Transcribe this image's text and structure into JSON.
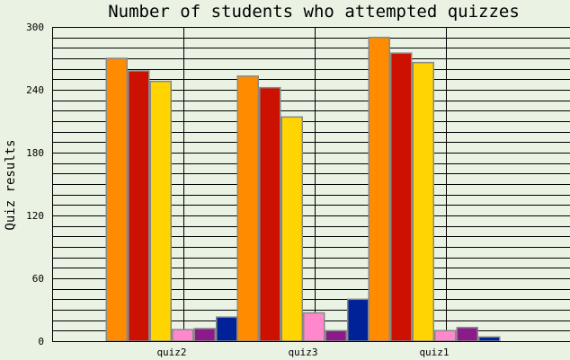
{
  "chart_data": {
    "type": "bar",
    "title": "Number of students who attempted quizzes",
    "xlabel": "",
    "ylabel": "Quiz results",
    "ylim": [
      0,
      300
    ],
    "yticks": [
      "0",
      "60",
      "120",
      "180",
      "240",
      "300"
    ],
    "grid": true,
    "categories": [
      "quiz2",
      "quiz3",
      "quiz1"
    ],
    "series": [
      {
        "color": "#ff8c00",
        "values": [
          270,
          253,
          290
        ]
      },
      {
        "color": "#cc1100",
        "values": [
          258,
          242,
          275
        ]
      },
      {
        "color": "#ffd400",
        "values": [
          248,
          214,
          266
        ]
      },
      {
        "color": "#ff88cc",
        "values": [
          11,
          27,
          10
        ]
      },
      {
        "color": "#8b1a8b",
        "values": [
          12,
          10,
          13
        ]
      },
      {
        "color": "#002299",
        "values": [
          23,
          40,
          4
        ]
      }
    ],
    "colors": {
      "background": "#e9f2e3",
      "plot_background": "#e9f2e3",
      "grid": "#000000",
      "bar_outline": "#888888"
    }
  }
}
